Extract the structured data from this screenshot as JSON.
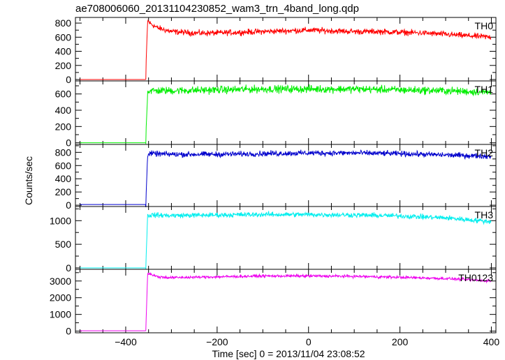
{
  "figure": {
    "title": "ae708006060_20131104230852_wam3_trn_4band_long.qdp",
    "ylabel": "Counts/sec",
    "xlabel": "Time [sec] 0 = 2013/11/04 23:08:52"
  },
  "chart_data": [
    {
      "type": "line",
      "series": [
        {
          "name": "TH0",
          "color": "#ff0000"
        }
      ],
      "xlim": [
        -510,
        410
      ],
      "ylim": [
        -20,
        880
      ],
      "yticks": [
        0,
        200,
        400,
        600,
        800
      ],
      "xticks": [
        -400,
        -200,
        0,
        200,
        400
      ],
      "profile": {
        "x": [
          -510,
          -356,
          -355,
          -352,
          -345,
          -330,
          -300,
          -250,
          -200,
          -150,
          -100,
          -50,
          0,
          50,
          100,
          150,
          200,
          250,
          300,
          350,
          400
        ],
        "y": [
          0,
          0,
          300,
          830,
          790,
          730,
          680,
          660,
          660,
          670,
          680,
          690,
          700,
          690,
          680,
          680,
          670,
          660,
          640,
          620,
          600
        ]
      },
      "noise": 35
    },
    {
      "type": "line",
      "series": [
        {
          "name": "TH1",
          "color": "#00ee00"
        }
      ],
      "xlim": [
        -510,
        410
      ],
      "ylim": [
        -20,
        760
      ],
      "yticks": [
        0,
        200,
        400,
        600
      ],
      "xticks": [
        -400,
        -200,
        0,
        200,
        400
      ],
      "profile": {
        "x": [
          -510,
          -356,
          -355,
          -352,
          -345,
          -300,
          -200,
          -100,
          0,
          100,
          200,
          300,
          400
        ],
        "y": [
          0,
          0,
          220,
          630,
          640,
          640,
          650,
          660,
          660,
          660,
          650,
          640,
          620
        ]
      },
      "noise": 40
    },
    {
      "type": "line",
      "series": [
        {
          "name": "TH2",
          "color": "#0000cc"
        }
      ],
      "xlim": [
        -510,
        410
      ],
      "ylim": [
        -20,
        920
      ],
      "yticks": [
        0,
        200,
        400,
        600,
        800
      ],
      "xticks": [
        -400,
        -200,
        0,
        200,
        400
      ],
      "profile": {
        "x": [
          -510,
          -356,
          -355,
          -352,
          -345,
          -300,
          -200,
          -100,
          0,
          100,
          200,
          300,
          400
        ],
        "y": [
          10,
          10,
          260,
          760,
          780,
          770,
          770,
          780,
          790,
          790,
          780,
          760,
          740
        ]
      },
      "noise": 35
    },
    {
      "type": "line",
      "series": [
        {
          "name": "TH3",
          "color": "#00eeee"
        }
      ],
      "xlim": [
        -510,
        410
      ],
      "ylim": [
        -30,
        1300
      ],
      "yticks": [
        0,
        500,
        1000
      ],
      "xticks": [
        -400,
        -200,
        0,
        200,
        400
      ],
      "profile": {
        "x": [
          -510,
          -356,
          -355,
          -352,
          -345,
          -300,
          -200,
          -100,
          0,
          100,
          200,
          300,
          350,
          400
        ],
        "y": [
          0,
          0,
          350,
          1100,
          1120,
          1110,
          1120,
          1130,
          1130,
          1120,
          1100,
          1060,
          1020,
          980
        ]
      },
      "noise": 45
    },
    {
      "type": "line",
      "series": [
        {
          "name": "TH0123",
          "color": "#ee00ee"
        }
      ],
      "xlim": [
        -510,
        410
      ],
      "ylim": [
        -100,
        3700
      ],
      "yticks": [
        0,
        1000,
        2000,
        3000
      ],
      "xticks": [
        -400,
        -200,
        0,
        200,
        400
      ],
      "profile": {
        "x": [
          -510,
          -356,
          -355,
          -352,
          -345,
          -330,
          -300,
          -200,
          -100,
          0,
          100,
          200,
          300,
          400
        ],
        "y": [
          20,
          20,
          1000,
          3450,
          3400,
          3250,
          3200,
          3250,
          3300,
          3300,
          3280,
          3220,
          3150,
          3000
        ]
      },
      "noise": 70
    }
  ]
}
